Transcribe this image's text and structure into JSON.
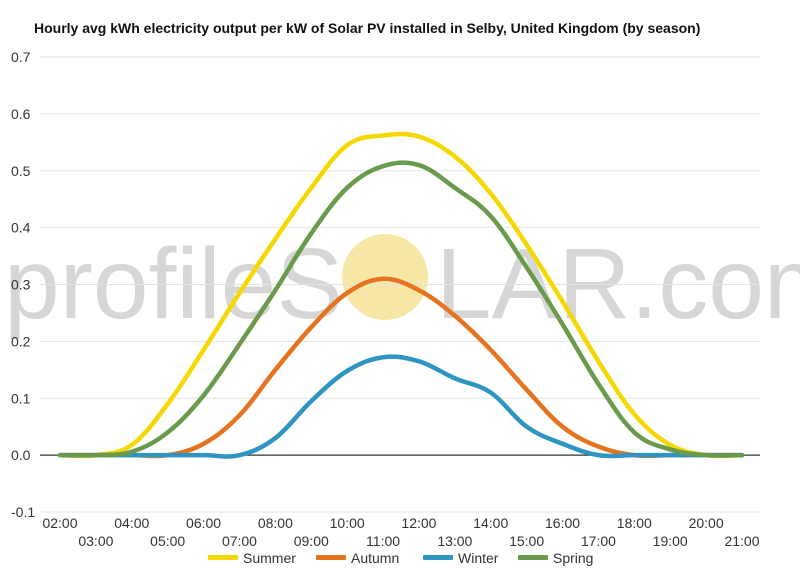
{
  "watermark": {
    "text_left": "profileS",
    "text_right": "LAR.com",
    "sun_color": "#f7e7a6",
    "text_color": "#d6d6d6"
  },
  "chart_data": {
    "type": "line",
    "title": "Hourly avg kWh electricity output per kW of Solar PV installed in Selby, United Kingdom (by season)",
    "xlabel": "",
    "ylabel": "",
    "ylim": [
      -0.1,
      0.7
    ],
    "yticks": [
      "-0.1",
      "0.0",
      "0.1",
      "0.2",
      "0.3",
      "0.4",
      "0.5",
      "0.6",
      "0.7"
    ],
    "categories": [
      "02:00",
      "03:00",
      "04:00",
      "05:00",
      "06:00",
      "07:00",
      "08:00",
      "09:00",
      "10:00",
      "11:00",
      "12:00",
      "13:00",
      "14:00",
      "15:00",
      "16:00",
      "17:00",
      "18:00",
      "19:00",
      "20:00",
      "21:00"
    ],
    "grid": true,
    "legend_position": "bottom",
    "series": [
      {
        "name": "Summer",
        "color": "#f5d800",
        "values": [
          0,
          0,
          0.018,
          0.09,
          0.185,
          0.285,
          0.38,
          0.47,
          0.545,
          0.562,
          0.56,
          0.525,
          0.46,
          0.37,
          0.27,
          0.165,
          0.072,
          0.018,
          0,
          0
        ]
      },
      {
        "name": "Autumn",
        "color": "#e6731f",
        "values": [
          0,
          0,
          0,
          0,
          0.02,
          0.07,
          0.15,
          0.225,
          0.285,
          0.31,
          0.29,
          0.245,
          0.185,
          0.115,
          0.05,
          0.015,
          0,
          0,
          0,
          0
        ]
      },
      {
        "name": "Winter",
        "color": "#2e95c2",
        "values": [
          0,
          0,
          0,
          0,
          0,
          0,
          0.03,
          0.095,
          0.148,
          0.172,
          0.165,
          0.135,
          0.11,
          0.05,
          0.02,
          0,
          0,
          0,
          0,
          0
        ]
      },
      {
        "name": "Spring",
        "color": "#6a9a4c",
        "values": [
          0,
          0,
          0.006,
          0.04,
          0.105,
          0.195,
          0.29,
          0.39,
          0.47,
          0.508,
          0.51,
          0.47,
          0.42,
          0.33,
          0.23,
          0.125,
          0.04,
          0.01,
          0,
          0
        ]
      }
    ]
  }
}
